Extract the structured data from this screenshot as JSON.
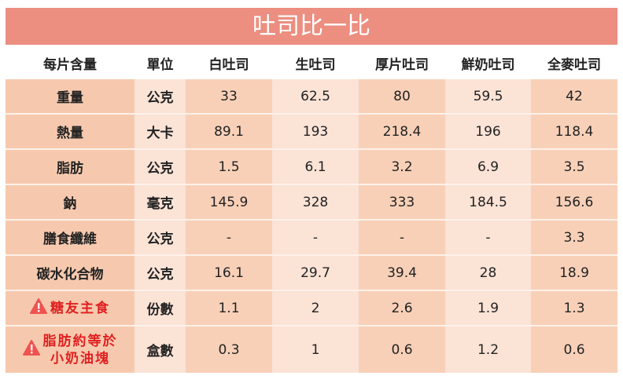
{
  "title": "吐司比一比",
  "headers": [
    "每片含量",
    "單位",
    "白吐司",
    "生吐司",
    "厚片吐司",
    "鮮奶吐司",
    "全麥吐司"
  ],
  "rows": [
    {
      "label": "重量",
      "unit": "公克",
      "values": [
        "33",
        "62.5",
        "80",
        "59.5",
        "42"
      ]
    },
    {
      "label": "熱量",
      "unit": "大卡",
      "values": [
        "89.1",
        "193",
        "218.4",
        "196",
        "118.4"
      ]
    },
    {
      "label": "脂肪",
      "unit": "公克",
      "values": [
        "1.5",
        "6.1",
        "3.2",
        "6.9",
        "3.5"
      ]
    },
    {
      "label": "鈉",
      "unit": "毫克",
      "values": [
        "145.9",
        "328",
        "333",
        "184.5",
        "156.6"
      ]
    },
    {
      "label": "膳食纖維",
      "unit": "公克",
      "values": [
        "-",
        "-",
        "-",
        "-",
        "3.3"
      ]
    },
    {
      "label": "碳水化合物",
      "unit": "公克",
      "values": [
        "16.1",
        "29.7",
        "39.4",
        "28",
        "18.9"
      ]
    },
    {
      "label": "糖友主食",
      "unit": "份數",
      "values": [
        "1.1",
        "2",
        "2.6",
        "1.9",
        "1.3"
      ],
      "warning": true,
      "icon": "warning-icon"
    },
    {
      "label": "脂肪約等於",
      "label2": "小奶油塊",
      "unit": "盒數",
      "values": [
        "0.3",
        "1",
        "0.6",
        "1.2",
        "0.6"
      ],
      "warning": true,
      "icon": "warning-icon"
    }
  ],
  "colors": {
    "title_bg": "#ec8e80",
    "warning": "#e02020",
    "dark_cell": "#f8d0b8",
    "light_cell": "#fbe3d6"
  }
}
